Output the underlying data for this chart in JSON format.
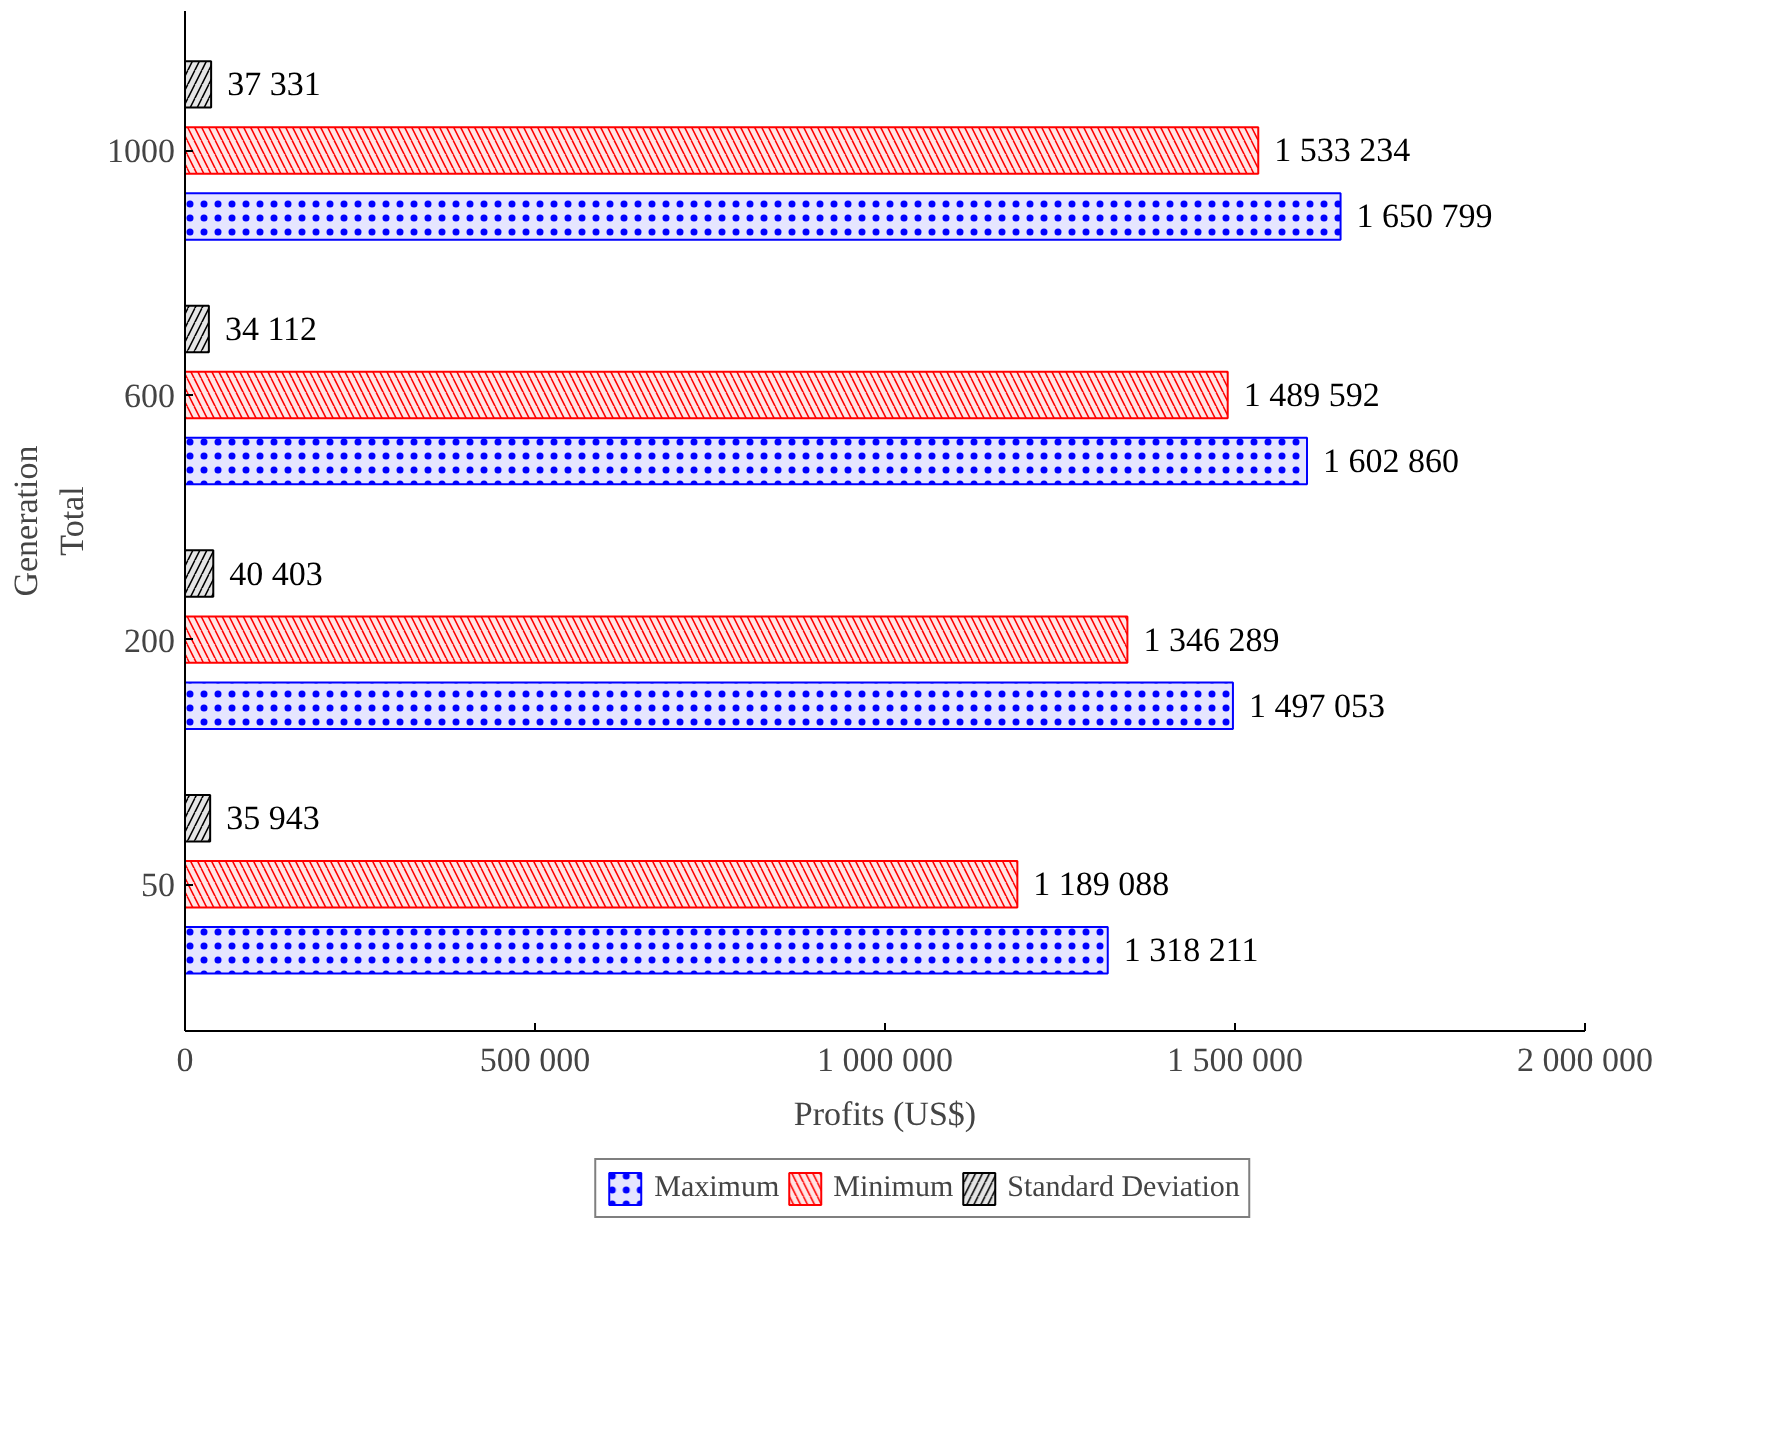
{
  "chart_data": {
    "type": "bar",
    "orientation": "horizontal",
    "xlabel": "Profits (US$)",
    "ylabel": "Generation\nTotal",
    "categories": [
      "1000",
      "600",
      "200",
      "50"
    ],
    "series": [
      {
        "name": "Maximum",
        "color": "#0000ff",
        "values": [
          1650799,
          1602860,
          1497053,
          1318211
        ],
        "value_labels": [
          "1 650 799",
          "1 602 860",
          "1 497 053",
          "1 318 211"
        ]
      },
      {
        "name": "Minimum",
        "color": "#ff0000",
        "values": [
          1533234,
          1489592,
          1346289,
          1189088
        ],
        "value_labels": [
          "1 533 234",
          "1 489 592",
          "1 346 289",
          "1 189 088"
        ]
      },
      {
        "name": "Standard Deviation",
        "color": "#000000",
        "values": [
          37331,
          34112,
          40403,
          35943
        ],
        "value_labels": [
          "37 331",
          "34 112",
          "40 403",
          "35 943"
        ]
      }
    ],
    "xlim": [
      0,
      2000000
    ],
    "xticks": [
      0,
      {
        "value": 500000,
        "label": "500 000"
      },
      {
        "value": 1000000,
        "label": "1 000 000"
      },
      {
        "value": 1500000,
        "label": "1 500 000"
      },
      {
        "value": 2000000,
        "label": "2 000 000"
      }
    ],
    "grid": false,
    "legend": "bottom"
  }
}
